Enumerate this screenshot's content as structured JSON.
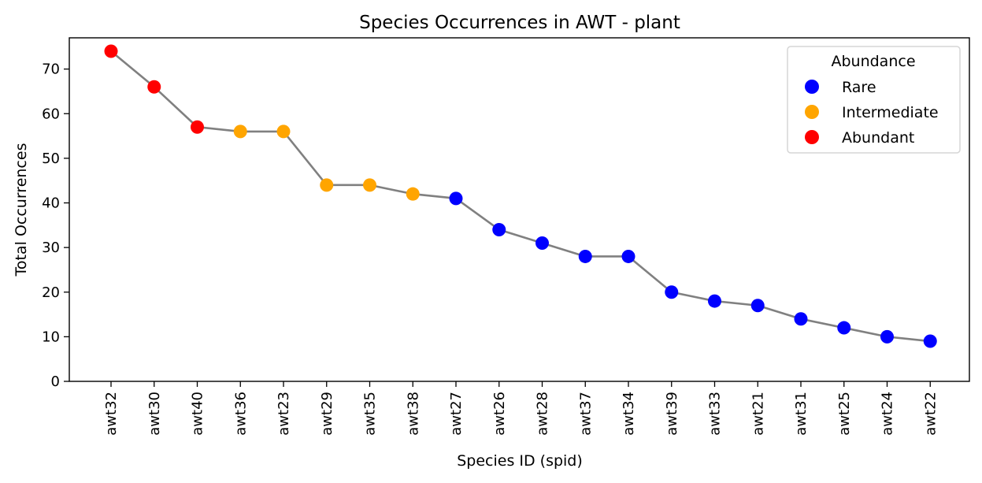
{
  "chart_data": {
    "type": "line",
    "title": "Species Occurrences in AWT - plant",
    "xlabel": "Species ID (spid)",
    "ylabel": "Total Occurrences",
    "ylim": [
      0,
      77
    ],
    "yticks": [
      0,
      10,
      20,
      30,
      40,
      50,
      60,
      70
    ],
    "grid": false,
    "categories": [
      "awt32",
      "awt30",
      "awt40",
      "awt36",
      "awt23",
      "awt29",
      "awt35",
      "awt38",
      "awt27",
      "awt26",
      "awt28",
      "awt37",
      "awt34",
      "awt39",
      "awt33",
      "awt21",
      "awt31",
      "awt25",
      "awt24",
      "awt22"
    ],
    "values": [
      74,
      66,
      57,
      56,
      56,
      44,
      44,
      42,
      41,
      34,
      31,
      28,
      28,
      20,
      18,
      17,
      14,
      12,
      10,
      9
    ],
    "abundance": [
      "Abundant",
      "Abundant",
      "Abundant",
      "Intermediate",
      "Intermediate",
      "Intermediate",
      "Intermediate",
      "Intermediate",
      "Rare",
      "Rare",
      "Rare",
      "Rare",
      "Rare",
      "Rare",
      "Rare",
      "Rare",
      "Rare",
      "Rare",
      "Rare",
      "Rare"
    ],
    "line_color": "#808080",
    "legend": {
      "title": "Abundance",
      "placement": "top-right",
      "entries": [
        {
          "name": "Rare",
          "color": "#0000ff"
        },
        {
          "name": "Intermediate",
          "color": "#ffa500"
        },
        {
          "name": "Abundant",
          "color": "#ff0000"
        }
      ]
    }
  }
}
